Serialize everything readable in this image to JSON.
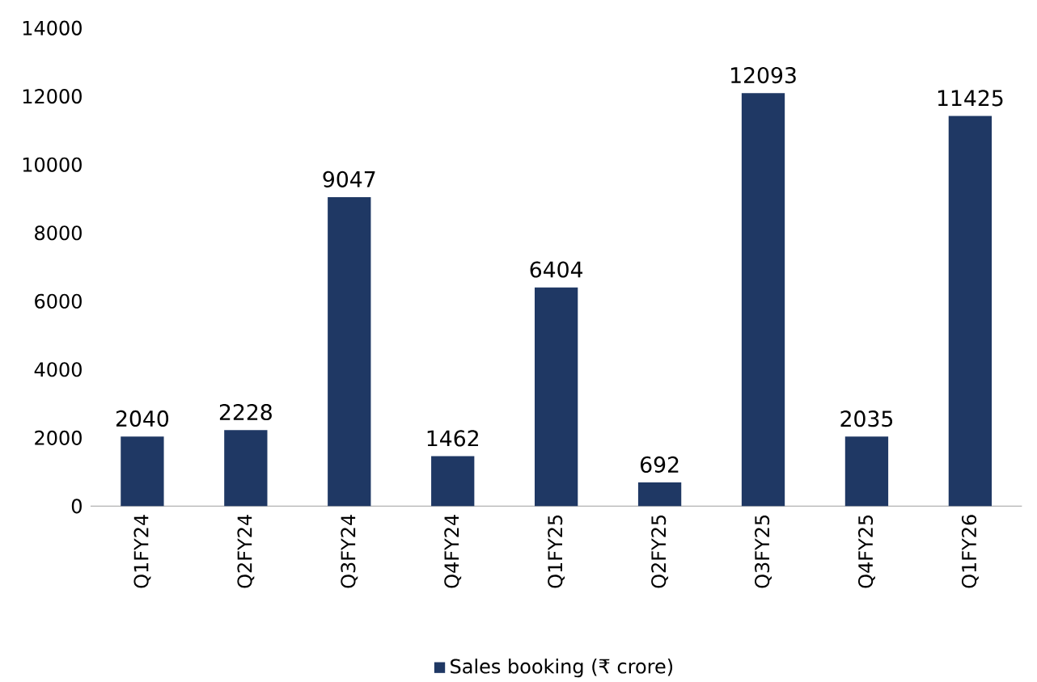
{
  "chart_data": {
    "type": "bar",
    "categories": [
      "Q1FY24",
      "Q2FY24",
      "Q3FY24",
      "Q4FY24",
      "Q1FY25",
      "Q2FY25",
      "Q3FY25",
      "Q4FY25",
      "Q1FY26"
    ],
    "series": [
      {
        "name": "Sales booking (₹ crore)",
        "color": "#1f3864",
        "values": [
          2040,
          2228,
          9047,
          1462,
          6404,
          692,
          12093,
          2035,
          11425
        ]
      }
    ],
    "ylim": [
      0,
      14000
    ],
    "yticks": [
      0,
      2000,
      4000,
      6000,
      8000,
      10000,
      12000,
      14000
    ],
    "data_labels": true,
    "legend": "bottom",
    "grid": false
  }
}
